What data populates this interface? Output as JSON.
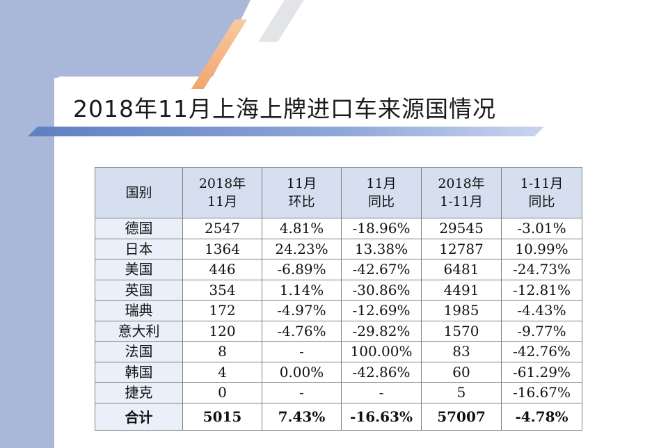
{
  "title": "2018年11月上海上牌进口车来源国情况",
  "table": {
    "headers": [
      {
        "l1": "国别",
        "l2": ""
      },
      {
        "l1": "2018年",
        "l2": "11月"
      },
      {
        "l1": "11月",
        "l2": "环比"
      },
      {
        "l1": "11月",
        "l2": "同比"
      },
      {
        "l1": "2018年",
        "l2": "1-11月"
      },
      {
        "l1": "1-11月",
        "l2": "同比"
      }
    ],
    "rows": [
      [
        "德国",
        "2547",
        "4.81%",
        "-18.96%",
        "29545",
        "-3.01%"
      ],
      [
        "日本",
        "1364",
        "24.23%",
        "13.38%",
        "12787",
        "10.99%"
      ],
      [
        "美国",
        "446",
        "-6.89%",
        "-42.67%",
        "6481",
        "-24.73%"
      ],
      [
        "英国",
        "354",
        "1.14%",
        "-30.86%",
        "4491",
        "-12.81%"
      ],
      [
        "瑞典",
        "172",
        "-4.97%",
        "-12.69%",
        "1985",
        "-4.43%"
      ],
      [
        "意大利",
        "120",
        "-4.76%",
        "-29.82%",
        "1570",
        "-9.77%"
      ],
      [
        "法国",
        "8",
        "-",
        "100.00%",
        "83",
        "-42.76%"
      ],
      [
        "韩国",
        "4",
        "0.00%",
        "-42.86%",
        "60",
        "-61.29%"
      ],
      [
        "捷克",
        "0",
        "-",
        "-",
        "5",
        "-16.67%"
      ]
    ],
    "total": [
      "合计",
      "5015",
      "7.43%",
      "-16.63%",
      "57007",
      "-4.78%"
    ]
  },
  "colors": {
    "background_band": "#a9b8d8",
    "header_fill": "#d5dff0",
    "country_fill": "#eaf0f9",
    "title_bar": "#5e7fc3",
    "accent_stripe": "#f2a56d"
  }
}
